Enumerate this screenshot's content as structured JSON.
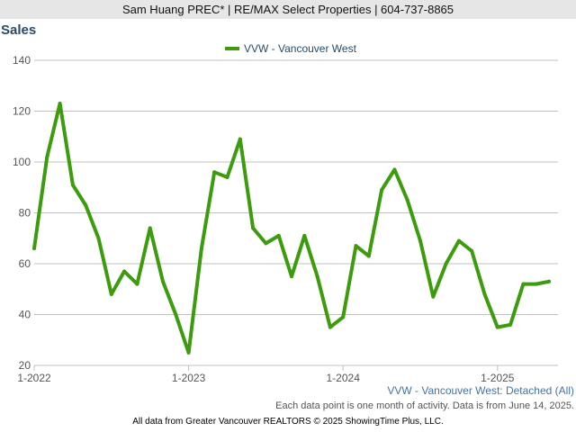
{
  "header": {
    "text": "Sam Huang PREC* | RE/MAX Select Properties | 604-737-8865"
  },
  "footer": {
    "subtitle": "VVW - Vancouver West: Detached (All)",
    "note": "Each data point is one month of activity. Data is from June 14, 2025.",
    "credit": "All data from Greater Vancouver REALTORS © 2025 ShowingTime Plus, LLC."
  },
  "colors": {
    "series": "#3d9c0e",
    "grid": "#c0c0c0",
    "title": "#274b6d",
    "header_bg": "#e6e6e6"
  },
  "chart_data": {
    "type": "line",
    "title": "Sales",
    "ylim": [
      20,
      140
    ],
    "yticks": [
      20,
      40,
      60,
      80,
      100,
      120,
      140
    ],
    "xticks": [
      {
        "label": "1-2022",
        "index": 0
      },
      {
        "label": "1-2023",
        "index": 12
      },
      {
        "label": "1-2024",
        "index": 24
      },
      {
        "label": "1-2025",
        "index": 36
      }
    ],
    "grid": true,
    "legend_position": "top-center",
    "x": [
      "2022-01",
      "2022-02",
      "2022-03",
      "2022-04",
      "2022-05",
      "2022-06",
      "2022-07",
      "2022-08",
      "2022-09",
      "2022-10",
      "2022-11",
      "2022-12",
      "2023-01",
      "2023-02",
      "2023-03",
      "2023-04",
      "2023-05",
      "2023-06",
      "2023-07",
      "2023-08",
      "2023-09",
      "2023-10",
      "2023-11",
      "2023-12",
      "2024-01",
      "2024-02",
      "2024-03",
      "2024-04",
      "2024-05",
      "2024-06",
      "2024-07",
      "2024-08",
      "2024-09",
      "2024-10",
      "2024-11",
      "2024-12",
      "2025-01",
      "2025-02",
      "2025-03",
      "2025-04",
      "2025-05"
    ],
    "series": [
      {
        "name": "VVW - Vancouver West",
        "values": [
          66,
          102,
          123,
          91,
          83,
          70,
          48,
          57,
          52,
          74,
          53,
          40,
          25,
          66,
          96,
          94,
          109,
          74,
          68,
          71,
          55,
          71,
          55,
          35,
          39,
          67,
          63,
          89,
          97,
          85,
          69,
          47,
          60,
          69,
          65,
          48,
          35,
          36,
          52,
          52,
          53
        ]
      }
    ]
  }
}
